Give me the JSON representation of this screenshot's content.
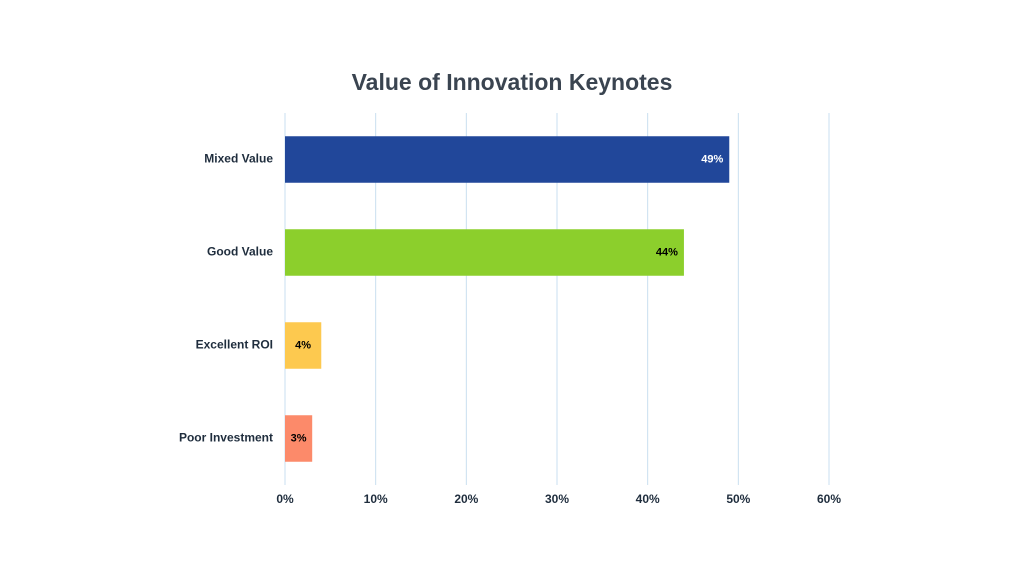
{
  "chart_data": {
    "type": "hbar",
    "title": "Value of Innovation Keynotes",
    "categories": [
      "Mixed Value",
      "Good Value",
      "Excellent ROI",
      "Poor Investment"
    ],
    "values": [
      49,
      44,
      4,
      3
    ],
    "value_labels": [
      "49%",
      "44%",
      "4%",
      "3%"
    ],
    "colors": [
      "#21479a",
      "#8ccf2c",
      "#fdc94f",
      "#fc8a6a"
    ],
    "xlim": [
      0,
      60
    ],
    "xticks": [
      {
        "value": 0,
        "label": "0%"
      },
      {
        "value": 10,
        "label": "10%"
      },
      {
        "value": 20,
        "label": "20%"
      },
      {
        "value": 30,
        "label": "30%"
      },
      {
        "value": 40,
        "label": "40%"
      },
      {
        "value": 50,
        "label": "50%"
      },
      {
        "value": 60,
        "label": "60%"
      }
    ],
    "grid": true
  }
}
